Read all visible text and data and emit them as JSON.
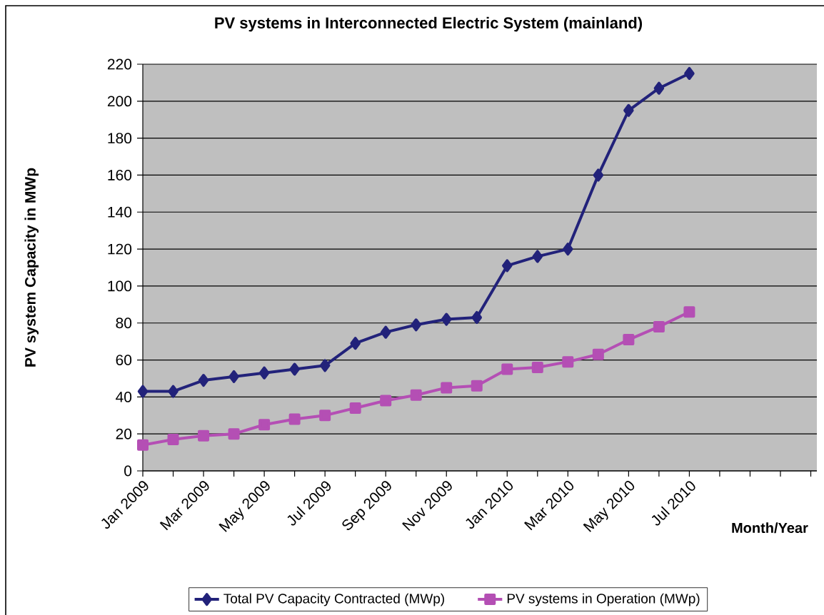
{
  "chart_data": {
    "type": "line",
    "title": "PV systems in Interconnected Electric System (mainland)",
    "xlabel": "Month/Year",
    "ylabel": "PV system Capacity in MWp",
    "categories": [
      "Jan 2009",
      null,
      "Mar 2009",
      null,
      "May 2009",
      null,
      "Jul 2009",
      null,
      "Sep 2009",
      null,
      "Nov 2009",
      null,
      "Jan 2010",
      null,
      "Mar 2010",
      null,
      "May 2010",
      null,
      "Jul 2010"
    ],
    "series": [
      {
        "name": "Total PV Capacity Contracted (MWp)",
        "color": "#22227a",
        "marker": "diamond",
        "values": [
          43,
          43,
          49,
          51,
          53,
          55,
          57,
          69,
          75,
          79,
          82,
          83,
          111,
          116,
          120,
          160,
          195,
          207,
          215
        ]
      },
      {
        "name": "PV systems in Operation (MWp)",
        "color": "#b44fb4",
        "marker": "square",
        "values": [
          14,
          17,
          19,
          20,
          25,
          28,
          30,
          34,
          38,
          41,
          45,
          46,
          55,
          56,
          59,
          63,
          71,
          78,
          86
        ]
      }
    ],
    "ylim": [
      0,
      220
    ],
    "yticks": [
      0,
      20,
      40,
      60,
      80,
      100,
      120,
      140,
      160,
      180,
      200,
      220
    ],
    "grid": "y",
    "legend": "bottom",
    "line_style": "solid"
  }
}
